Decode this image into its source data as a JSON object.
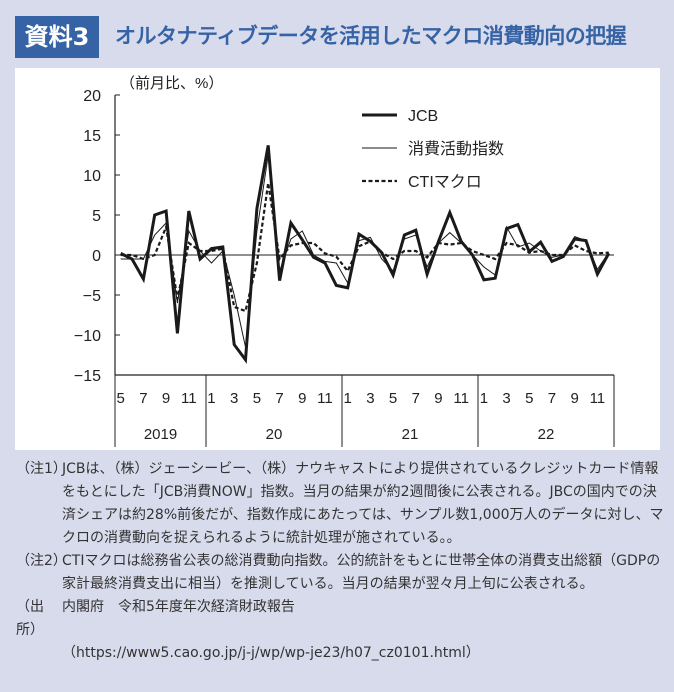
{
  "header": {
    "badge": "資料3",
    "title": "オルタナティブデータを活用したマクロ消費動向の把握"
  },
  "chart_data": {
    "type": "line",
    "unit_label": "（前月比、%）",
    "ylim": [
      -15,
      20
    ],
    "yticks": [
      20,
      15,
      10,
      5,
      0,
      -5,
      -10,
      -15
    ],
    "ytick_labels": [
      "20",
      "15",
      "10",
      "5",
      "0",
      "−5",
      "−10",
      "−15"
    ],
    "x_month_labels": {
      "2019": [
        "5",
        "7",
        "9",
        "11"
      ],
      "20": [
        "1",
        "3",
        "5",
        "7",
        "9",
        "11"
      ],
      "21": [
        "1",
        "3",
        "5",
        "7",
        "9",
        "11"
      ],
      "22": [
        "1",
        "3",
        "5",
        "7",
        "9",
        "11"
      ]
    },
    "years": [
      "2019",
      "20",
      "21",
      "22"
    ],
    "x_start": "2019-05",
    "x_end": "2022-12",
    "legend_position": "top-right",
    "series": [
      {
        "name": "JCB",
        "style": "thick",
        "values": [
          0.2,
          -0.5,
          -3,
          5,
          5.5,
          -9.8,
          5.5,
          -0.5,
          0.8,
          1.0,
          -11.2,
          -13.1,
          5.8,
          13.7,
          -3.2,
          4.0,
          1.9,
          -0.3,
          -1.0,
          -3.8,
          -4.1,
          2.6,
          1.7,
          0.3,
          -2.5,
          2.5,
          3.1,
          -2.4,
          1.7,
          5.3,
          1.7,
          0,
          -3.1,
          -2.9,
          3.3,
          3.8,
          0.4,
          1.6,
          -0.8,
          -0.2,
          2.0,
          1.8,
          -2.4,
          0.2
        ]
      },
      {
        "name": "消費活動指数",
        "style": "thin",
        "values": [
          -0.5,
          -0.5,
          -0.5,
          2.5,
          4.0,
          -6,
          3,
          0.5,
          -1,
          0.5,
          -5,
          -11.5,
          3,
          12.5,
          -2,
          2,
          3,
          0,
          -0.8,
          -1,
          -3.5,
          1.8,
          2.2,
          -0.5,
          -2,
          2,
          2.5,
          -1.5,
          1.5,
          2.8,
          1.5,
          0,
          -1.5,
          -2.5,
          3.5,
          1,
          1.5,
          0.5,
          -0.3,
          0,
          2.3,
          1.8,
          -1.8,
          0.3
        ]
      },
      {
        "name": "CTIマクロ",
        "style": "dashed",
        "values": [
          0,
          0,
          -0.5,
          0,
          3.5,
          -5.5,
          1.5,
          0.5,
          0.5,
          0.8,
          -6.5,
          -7,
          -1,
          9,
          -0.5,
          1.2,
          1.5,
          1.5,
          0.2,
          -0.2,
          -2,
          1.1,
          1.7,
          0.3,
          -0.5,
          0.5,
          0.5,
          -0.3,
          1.5,
          1.3,
          1.5,
          0.5,
          0,
          -0.5,
          1.5,
          1.2,
          0.3,
          0.5,
          0,
          0,
          1.2,
          0.5,
          0.2,
          0.3
        ]
      }
    ]
  },
  "notes": [
    {
      "label": "（注1）",
      "text": "JCBは、（株）ジェーシービー、（株）ナウキャストにより提供されているクレジットカード情報をもとにした「JCB消費NOW」指数。当月の結果が約2週間後に公表される。JBCの国内での決済シェアは約28%前後だが、指数作成にあたっては、サンプル数1,000万人のデータに対し、マクロの消費動向を捉えられるように統計処理が施されている。。"
    },
    {
      "label": "（注2）",
      "text": "CTIマクロは総務省公表の総消費動向指数。公的統計をもとに世帯全体の消費支出総額（GDPの家計最終消費支出に相当）を推測している。当月の結果が翌々月上旬に公表される。"
    },
    {
      "label": "（出所）",
      "text": "内閣府　令和5年度年次経済財政報告"
    },
    {
      "label": "",
      "text": "（https://www5.cao.go.jp/j-j/wp/wp-je23/h07_cz0101.html）"
    }
  ]
}
